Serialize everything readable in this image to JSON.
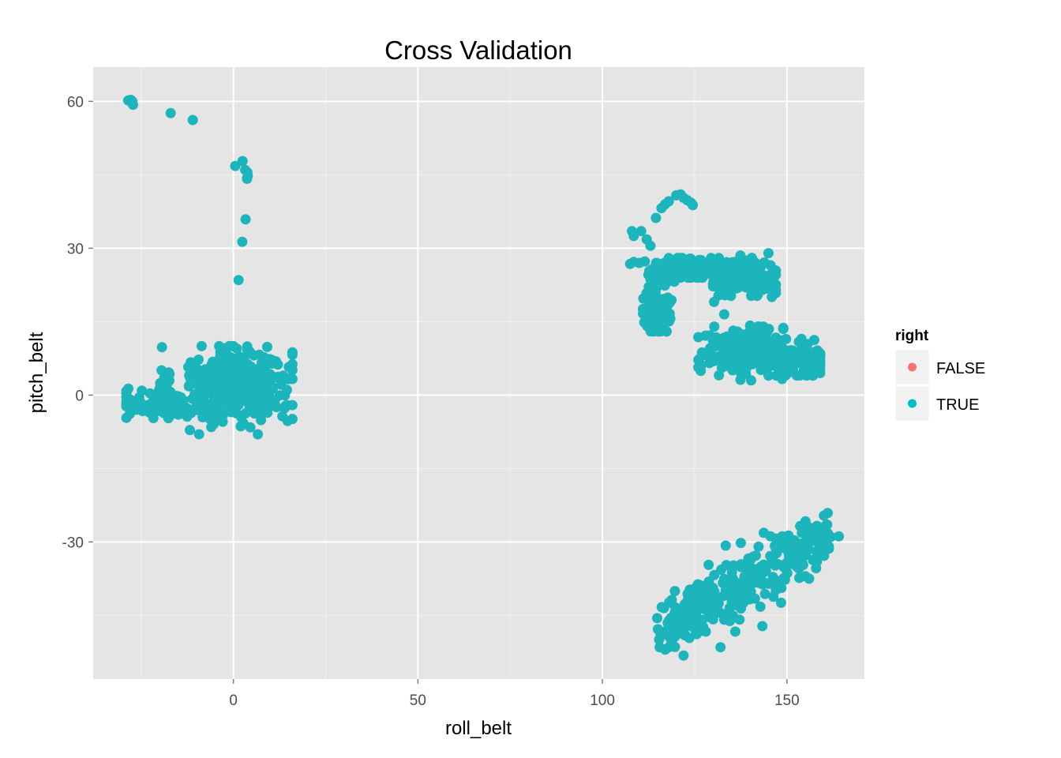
{
  "chart_data": {
    "type": "scatter",
    "title": "Cross Validation",
    "xlabel": "roll_belt",
    "ylabel": "pitch_belt",
    "xlim": [
      -38,
      171
    ],
    "ylim": [
      -58,
      67
    ],
    "x_ticks": [
      0,
      50,
      100,
      150
    ],
    "y_ticks": [
      -30,
      0,
      30,
      60
    ],
    "grid": true,
    "legend": {
      "title": "right",
      "placement": "right",
      "entries": [
        {
          "label": "FALSE",
          "color": "#F8766D"
        },
        {
          "label": "TRUE",
          "color": "#00BFC4"
        }
      ]
    },
    "series": [
      {
        "name": "TRUE",
        "color": "#1BB5BB",
        "clusters": [
          {
            "cx": 0,
            "cy": 2,
            "sx": 8,
            "sy": 4,
            "n": 380,
            "min_x": -28,
            "max_x": 16,
            "min_y": -8,
            "max_y": 10
          },
          {
            "cx": -20,
            "cy": -2,
            "sx": 6,
            "sy": 1.5,
            "n": 90,
            "min_x": -29,
            "max_x": -8,
            "min_y": -5,
            "max_y": 2
          },
          {
            "cx": 125,
            "cy": 26,
            "sx": 5,
            "sy": 1.2,
            "n": 130,
            "min_x": 118,
            "max_x": 132,
            "min_y": 24,
            "max_y": 28
          },
          {
            "cx": 138,
            "cy": 24,
            "sx": 5,
            "sy": 2,
            "n": 130,
            "min_x": 130,
            "max_x": 147,
            "min_y": 19,
            "max_y": 29
          },
          {
            "cx": 115,
            "cy": 19,
            "sx": 2,
            "sy": 4,
            "n": 110,
            "min_x": 111,
            "max_x": 121,
            "min_y": 13,
            "max_y": 27
          },
          {
            "cx": 138,
            "cy": 9,
            "sx": 6,
            "sy": 2.5,
            "n": 200,
            "min_x": 126,
            "max_x": 149,
            "min_y": 3,
            "max_y": 14
          },
          {
            "cx": 153,
            "cy": 7,
            "sx": 4,
            "sy": 2,
            "n": 110,
            "min_x": 145,
            "max_x": 159,
            "min_y": 4,
            "max_y": 12
          },
          {
            "trend": true,
            "x0": 117,
            "y0": -47,
            "x1": 161,
            "y1": -29,
            "noise_y": 3,
            "n": 330
          }
        ],
        "points": [
          [
            -28.5,
            60.2
          ],
          [
            -27.8,
            60.3
          ],
          [
            -27.4,
            60.0
          ],
          [
            -27.2,
            59.3
          ],
          [
            -17,
            57.6
          ],
          [
            -11,
            56.2
          ],
          [
            0.5,
            46.8
          ],
          [
            2.5,
            47.8
          ],
          [
            3.2,
            46.0
          ],
          [
            3.8,
            45.5
          ],
          [
            3.9,
            44.8
          ],
          [
            3.7,
            44.2
          ],
          [
            3.3,
            35.9
          ],
          [
            2.4,
            31.3
          ],
          [
            1.4,
            23.5
          ],
          [
            108,
            33.5
          ],
          [
            108.5,
            32.5
          ],
          [
            110.5,
            33.5
          ],
          [
            112,
            31.8
          ],
          [
            113,
            30.5
          ],
          [
            114.5,
            36.2
          ],
          [
            116,
            38.2
          ],
          [
            117,
            39.0
          ],
          [
            118,
            39.6
          ],
          [
            120,
            40.8
          ],
          [
            121.2,
            41.0
          ],
          [
            122,
            40.3
          ],
          [
            123,
            39.8
          ],
          [
            124,
            39.3
          ],
          [
            124.5,
            38.8
          ],
          [
            107.5,
            26.8
          ],
          [
            108.5,
            27.2
          ],
          [
            110,
            27.0
          ],
          [
            111.5,
            27.3
          ],
          [
            133,
            16.5
          ],
          [
            137,
            10.8
          ],
          [
            140,
            14.2
          ],
          [
            115.5,
            -51.5
          ],
          [
            117,
            -52
          ],
          [
            118,
            -51.5
          ],
          [
            122,
            -53.2
          ],
          [
            132,
            -51.5
          ],
          [
            118,
            -49.3
          ],
          [
            120,
            -49.0
          ],
          [
            128,
            -48.3
          ],
          [
            136,
            -48.3
          ],
          [
            125,
            -45.5
          ],
          [
            130,
            -45.8
          ],
          [
            132,
            -44.5
          ],
          [
            135,
            -45.0
          ],
          [
            138,
            -41.5
          ],
          [
            140,
            -41.2
          ],
          [
            141,
            -41.5
          ],
          [
            147,
            -39.8
          ],
          [
            148,
            -38.0
          ],
          [
            155,
            -37.0
          ],
          [
            156,
            -37.5
          ],
          [
            154,
            -33.8
          ],
          [
            137.5,
            -30.2
          ],
          [
            155.5,
            -27.5
          ],
          [
            156.5,
            -28.0
          ]
        ]
      }
    ]
  }
}
